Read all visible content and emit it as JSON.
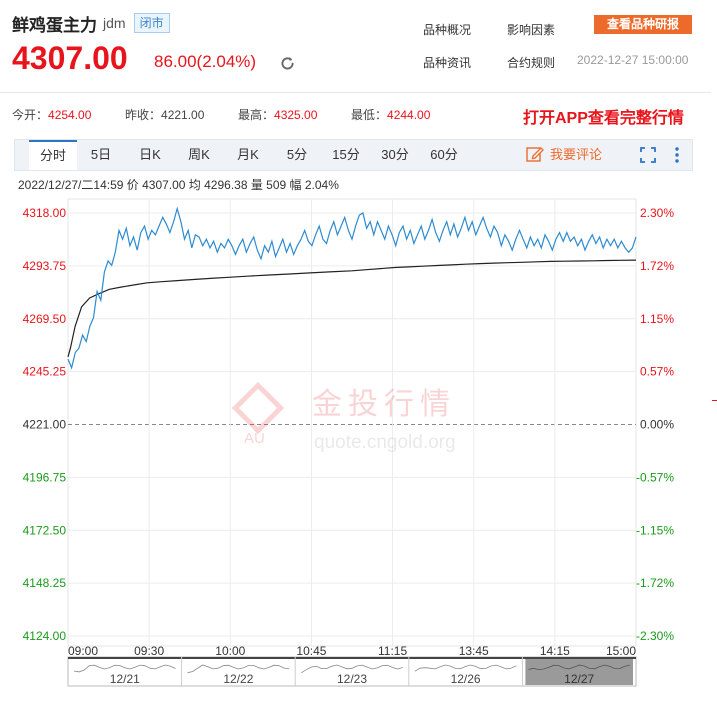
{
  "header": {
    "name": "鲜鸡蛋主力",
    "code": "jdm",
    "status": "闭市",
    "price": "4307.00",
    "change": "86.00(2.04%)",
    "links": [
      "品种概况",
      "影响因素",
      "品种资讯",
      "合约规则"
    ],
    "research_button": "查看品种研报",
    "timestamp": "2022-12-27 15:00:00"
  },
  "stats": [
    {
      "label": "今开：",
      "value": "4254.00",
      "red": true
    },
    {
      "label": "昨收：",
      "value": "4221.00",
      "red": false
    },
    {
      "label": "最高：",
      "value": "4325.00",
      "red": true
    },
    {
      "label": "最低：",
      "value": "4244.00",
      "red": true
    }
  ],
  "app_promo": "打开APP查看完整行情",
  "tabs": [
    "分时",
    "5日",
    "日K",
    "周K",
    "月K",
    "5分",
    "15分",
    "30分",
    "60分"
  ],
  "active_tab": "分时",
  "comment_label": "我要评论",
  "info_line": "2022/12/27/二14:59  价 4307.00  均 4296.38  量 509  幅 2.04%",
  "watermark": {
    "text": "金投行情",
    "url": "quote.cngold.org",
    "badge": "AU"
  },
  "colors": {
    "up": "#e8141c",
    "down": "#1a9b1a",
    "price_line": "#2d8bd0",
    "avg_line": "#222222",
    "accent": "#ec6a2a"
  },
  "chart_data": {
    "type": "line",
    "ylim": [
      4124.0,
      4318.0
    ],
    "baseline": 4221.0,
    "y_ticks_left": [
      "4318.00",
      "4293.75",
      "4269.50",
      "4245.25",
      "4221.00",
      "4196.75",
      "4172.50",
      "4148.25",
      "4124.00"
    ],
    "y_ticks_right": [
      "2.30%",
      "1.72%",
      "1.15%",
      "0.57%",
      "0.00%",
      "-0.57%",
      "-1.15%",
      "-1.72%",
      "-2.30%"
    ],
    "x_ticks": [
      "09:00",
      "09:30",
      "10:00",
      "10:45",
      "11:15",
      "13:45",
      "14:15",
      "15:00"
    ],
    "series": [
      {
        "name": "价",
        "values": [
          4251,
          4247,
          4254,
          4256,
          4262,
          4259,
          4266,
          4270,
          4282,
          4278,
          4291,
          4296,
          4294,
          4300,
          4310,
          4306,
          4311,
          4303,
          4307,
          4301,
          4309,
          4312,
          4306,
          4310,
          4308,
          4312,
          4316,
          4313,
          4309,
          4314,
          4320,
          4314,
          4306,
          4310,
          4302,
          4308,
          4307,
          4303,
          4306,
          4302,
          4305,
          4300,
          4304,
          4302,
          4306,
          4303,
          4299,
          4303,
          4306,
          4300,
          4304,
          4307,
          4301,
          4297,
          4303,
          4300,
          4305,
          4298,
          4302,
          4306,
          4300,
          4304,
          4299,
          4303,
          4306,
          4310,
          4305,
          4303,
          4308,
          4312,
          4306,
          4304,
          4310,
          4314,
          4308,
          4312,
          4316,
          4310,
          4306,
          4312,
          4317,
          4318,
          4311,
          4314,
          4308,
          4314,
          4310,
          4306,
          4312,
          4308,
          4303,
          4309,
          4312,
          4306,
          4310,
          4304,
          4308,
          4312,
          4306,
          4310,
          4315,
          4309,
          4305,
          4310,
          4314,
          4308,
          4313,
          4307,
          4311,
          4316,
          4310,
          4314,
          4308,
          4312,
          4316,
          4311,
          4307,
          4312,
          4309,
          4303,
          4308,
          4305,
          4301,
          4306,
          4310,
          4306,
          4302,
          4307,
          4303,
          4306,
          4302,
          4308,
          4305,
          4301,
          4306,
          4309,
          4305,
          4309,
          4305,
          4307,
          4303,
          4306,
          4301,
          4305,
          4308,
          4304,
          4307,
          4302,
          4306,
          4303,
          4306,
          4302,
          4305,
          4302,
          4300,
          4302,
          4307
        ]
      },
      {
        "name": "均",
        "values": [
          4252,
          4256,
          4266,
          4275,
          4279,
          4281,
          4283,
          4284,
          4285,
          4286,
          4286.5,
          4287,
          4287.5,
          4288,
          4288.5,
          4289,
          4289.5,
          4290,
          4290.5,
          4291,
          4291.5,
          4292,
          4292.5,
          4293,
          4293.3,
          4293.6,
          4293.9,
          4294.2,
          4294.5,
          4294.8,
          4295,
          4295.2,
          4295.4,
          4295.6,
          4295.8,
          4295.9,
          4296,
          4296.1,
          4296.2,
          4296.3,
          4296.38
        ]
      }
    ],
    "overview_dates": [
      "12/21",
      "12/22",
      "12/23",
      "12/26",
      "12/27"
    ],
    "overview_selected": "12/27"
  }
}
